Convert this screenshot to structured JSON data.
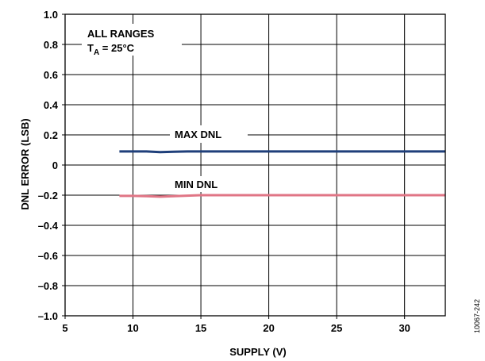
{
  "chart_data": {
    "type": "line",
    "xlabel": "SUPPLY (V)",
    "ylabel": "DNL ERROR (LSB)",
    "xlim": [
      5,
      33
    ],
    "ylim": [
      -1.0,
      1.0
    ],
    "x_ticks": [
      5,
      10,
      15,
      20,
      25,
      30
    ],
    "x_tick_labels": [
      "5",
      "10",
      "15",
      "20",
      "25",
      "30"
    ],
    "y_ticks": [
      1.0,
      0.8,
      0.6,
      0.4,
      0.2,
      0,
      -0.2,
      -0.4,
      -0.6,
      -0.8,
      -1.0
    ],
    "y_tick_labels": [
      "1.0",
      "0.8",
      "0.6",
      "0.4",
      "0.2",
      "0",
      "–0.2",
      "–0.4",
      "–0.6",
      "–0.8",
      "–1.0"
    ],
    "grid": true,
    "series": [
      {
        "name": "MAX DNL",
        "color": "#1f3f7a",
        "x": [
          9,
          10,
          11,
          12,
          13,
          14,
          15,
          17,
          20,
          25,
          30,
          33
        ],
        "y": [
          0.09,
          0.09,
          0.09,
          0.085,
          0.088,
          0.09,
          0.09,
          0.09,
          0.09,
          0.09,
          0.09,
          0.09
        ]
      },
      {
        "name": "MIN DNL",
        "color": "#e07585",
        "x": [
          9,
          10,
          11,
          12,
          13,
          14,
          15,
          17,
          20,
          25,
          30,
          33
        ],
        "y": [
          -0.205,
          -0.205,
          -0.207,
          -0.21,
          -0.207,
          -0.203,
          -0.2,
          -0.2,
          -0.2,
          -0.2,
          -0.2,
          -0.2
        ]
      }
    ],
    "annotations": {
      "condition_line1": "ALL RANGES",
      "condition_line2_main": "T",
      "condition_line2_sub": "A",
      "condition_line2_rest": " = 25°C"
    },
    "figure_id": "10067-242"
  }
}
